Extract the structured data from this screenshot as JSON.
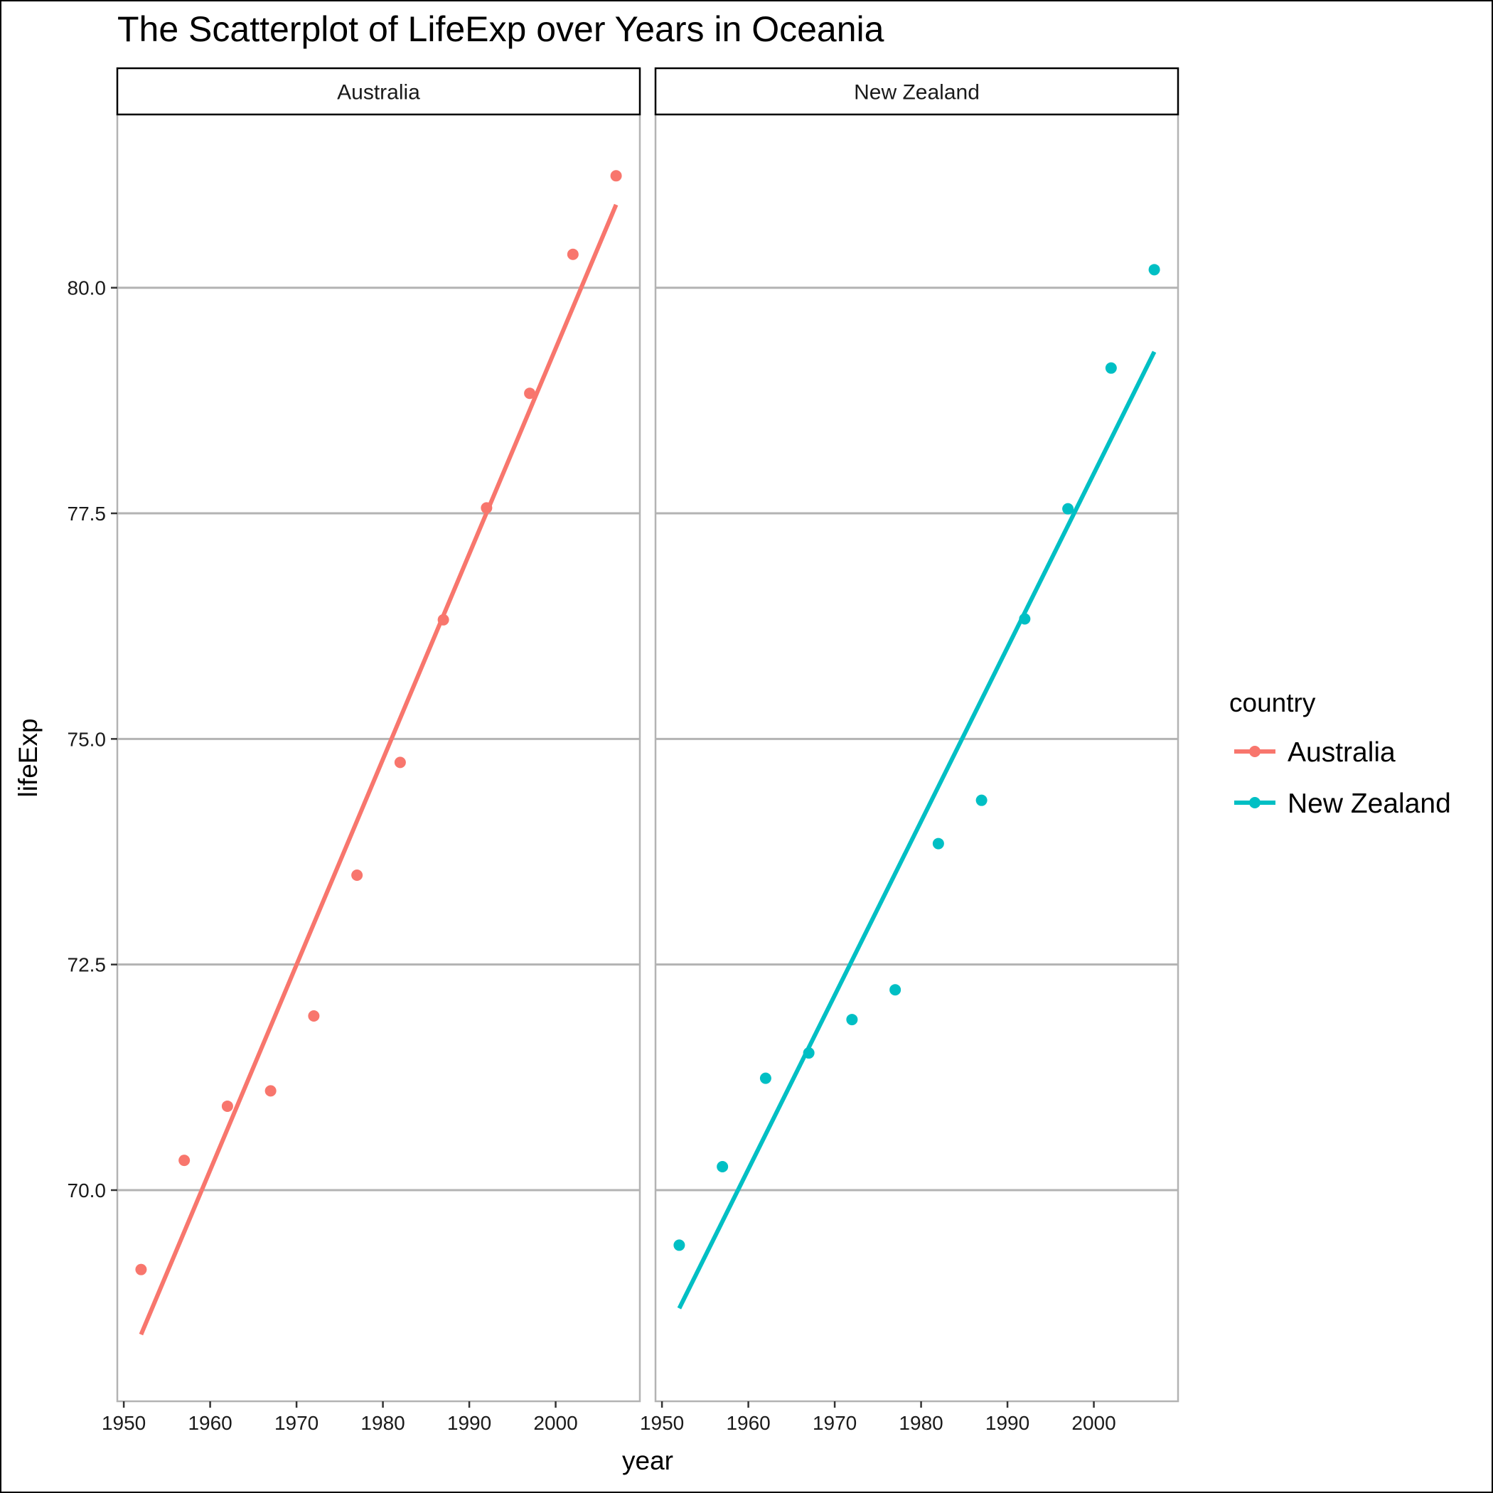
{
  "chart_data": {
    "type": "scatter",
    "title": "The Scatterplot of LifeExp over Years in Oceania",
    "xlabel": "year",
    "ylabel": "lifeExp",
    "xlim": [
      1949.25,
      2009.75
    ],
    "ylim": [
      67.66,
      81.92
    ],
    "x_ticks": [
      1950,
      1960,
      1970,
      1980,
      1990,
      2000
    ],
    "y_ticks": [
      70.0,
      72.5,
      75.0,
      77.5,
      80.0
    ],
    "y_tick_labels": [
      "70.0",
      "72.5",
      "75.0",
      "77.5",
      "80.0"
    ],
    "grid": "horizontal-major",
    "legend": {
      "title": "country",
      "position": "right"
    },
    "facets": [
      {
        "label": "Australia",
        "color": "#F8766D",
        "x": [
          1952,
          1957,
          1962,
          1967,
          1972,
          1977,
          1982,
          1987,
          1992,
          1997,
          2002,
          2007
        ],
        "y": [
          69.12,
          70.33,
          70.93,
          71.1,
          71.93,
          73.49,
          74.74,
          76.32,
          77.56,
          78.83,
          80.37,
          81.24
        ],
        "fit": {
          "x": [
            1952,
            2007
          ],
          "y": [
            68.4,
            80.92
          ]
        }
      },
      {
        "label": "New Zealand",
        "color": "#00BFC4",
        "x": [
          1952,
          1957,
          1962,
          1967,
          1972,
          1977,
          1982,
          1987,
          1992,
          1997,
          2002,
          2007
        ],
        "y": [
          69.39,
          70.26,
          71.24,
          71.52,
          71.89,
          72.22,
          73.84,
          74.32,
          76.33,
          77.55,
          79.11,
          80.2
        ],
        "fit": {
          "x": [
            1952,
            2007
          ],
          "y": [
            68.69,
            79.29
          ]
        }
      }
    ],
    "series": [
      {
        "name": "Australia",
        "color": "#F8766D"
      },
      {
        "name": "New Zealand",
        "color": "#00BFC4"
      }
    ]
  }
}
